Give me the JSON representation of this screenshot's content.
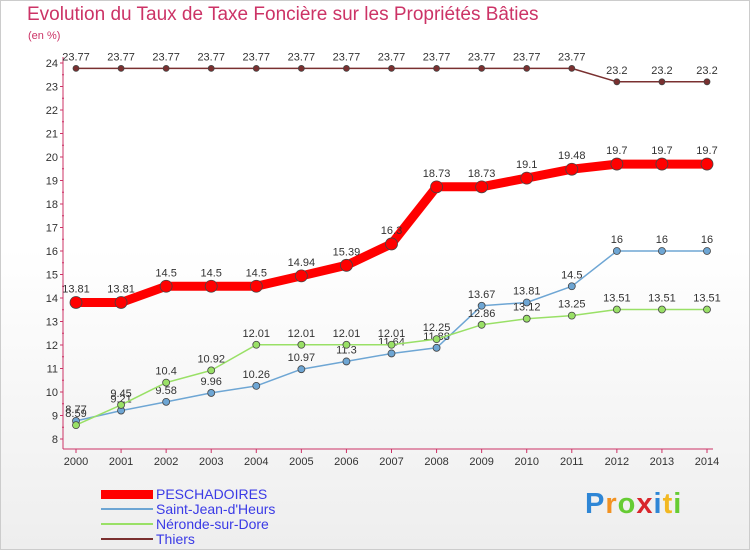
{
  "chart_data": {
    "type": "line",
    "title": "Evolution du Taux de Taxe Foncière sur les Propriétés Bâties",
    "unit_label": "(en %)",
    "x": [
      "2000",
      "2001",
      "2002",
      "2003",
      "2004",
      "2005",
      "2006",
      "2007",
      "2008",
      "2009",
      "2010",
      "2011",
      "2012",
      "2013",
      "2014"
    ],
    "ylim": [
      8,
      24
    ],
    "yticks": [
      "8",
      "9",
      "10",
      "11",
      "12",
      "13",
      "14",
      "15",
      "16",
      "17",
      "18",
      "19",
      "20",
      "21",
      "22",
      "23",
      "24"
    ],
    "grid": false,
    "legend_position": "bottom-left",
    "series": [
      {
        "name": "PESCHADOIRES",
        "color": "#ff0000",
        "values": [
          13.81,
          13.81,
          14.5,
          14.5,
          14.5,
          14.94,
          15.39,
          16.3,
          18.73,
          18.73,
          19.1,
          19.48,
          19.7,
          19.7,
          19.7
        ],
        "labels": [
          "13.81",
          "13.81",
          "14.5",
          "14.5",
          "14.5",
          "14.94",
          "15.39",
          "16.3",
          "18.73",
          "18.73",
          "19.1",
          "19.48",
          "19.7",
          "19.7",
          "19.7"
        ]
      },
      {
        "name": "Saint-Jean-d'Heurs",
        "color": "#6ea6d4",
        "values": [
          8.77,
          9.21,
          9.58,
          9.96,
          10.26,
          10.97,
          11.3,
          11.64,
          11.88,
          13.67,
          13.81,
          14.5,
          16,
          16,
          16
        ],
        "labels": [
          "8.77",
          "9.21",
          "9.58",
          "9.96",
          "10.26",
          "10.97",
          "11.3",
          "11.64",
          "11.88",
          "13.67",
          "13.81",
          "14.5",
          "16",
          "16",
          "16"
        ]
      },
      {
        "name": "Néronde-sur-Dore",
        "color": "#99e066",
        "values": [
          8.59,
          9.45,
          10.4,
          10.92,
          12.01,
          12.01,
          12.01,
          12.01,
          12.25,
          12.86,
          13.12,
          13.25,
          13.51,
          13.51,
          13.51
        ],
        "labels": [
          "8.59",
          "9.45",
          "10.4",
          "10.92",
          "12.01",
          "12.01",
          "12.01",
          "12.01",
          "12.25",
          "12.86",
          "13.12",
          "13.25",
          "13.51",
          "13.51",
          "13.51"
        ]
      },
      {
        "name": "Thiers",
        "color": "#7a3030",
        "values": [
          23.77,
          23.77,
          23.77,
          23.77,
          23.77,
          23.77,
          23.77,
          23.77,
          23.77,
          23.77,
          23.77,
          23.77,
          23.2,
          23.2,
          23.2
        ],
        "labels": [
          "23.77",
          "23.77",
          "23.77",
          "23.77",
          "23.77",
          "23.77",
          "23.77",
          "23.77",
          "23.77",
          "23.77",
          "23.77",
          "23.77",
          "23.2",
          "23.2",
          "23.2"
        ]
      }
    ]
  },
  "logo": {
    "text": "Proxiti",
    "letters": [
      "P",
      "r",
      "o",
      "x",
      "i",
      "t",
      "i"
    ],
    "colors": [
      "#2e86d6",
      "#f29222",
      "#66cc33",
      "#d9262c",
      "#2e86d6",
      "#f2b822",
      "#66cc33"
    ]
  }
}
